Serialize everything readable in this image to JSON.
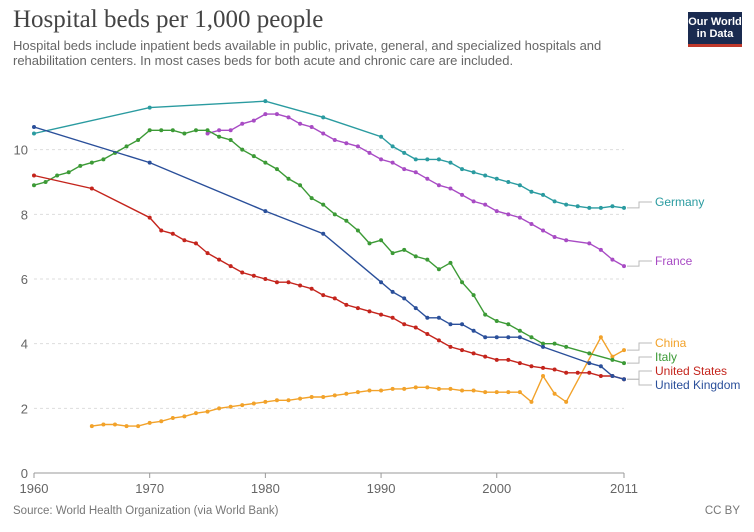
{
  "header": {
    "title": "Hospital beds per 1,000 people",
    "subtitle": "Hospital beds include inpatient beds available in public, private, general, and specialized hospitals and rehabilitation centers. In most cases beds for both acute and chronic care are included.",
    "logo_line1": "Our World",
    "logo_line2": "in Data"
  },
  "footer": {
    "source": "Source: World Health Organization (via World Bank)",
    "license": "CC BY"
  },
  "chart_data": {
    "type": "line",
    "title": "Hospital beds per 1,000 people",
    "xlabel": "",
    "ylabel": "",
    "xlim": [
      1960,
      2011
    ],
    "ylim": [
      0,
      12
    ],
    "x_ticks": [
      1960,
      1970,
      1980,
      1990,
      2000,
      2011
    ],
    "y_ticks": [
      0,
      2,
      4,
      6,
      8,
      10
    ],
    "grid": "horizontal dashed",
    "legend": "inline labels at right",
    "series": [
      {
        "name": "Germany",
        "color": "#2a9ba0",
        "points": [
          [
            1960,
            10.5
          ],
          [
            1970,
            11.3
          ],
          [
            1980,
            11.5
          ],
          [
            1985,
            11.0
          ],
          [
            1990,
            10.4
          ],
          [
            1991,
            10.1
          ],
          [
            1992,
            9.9
          ],
          [
            1993,
            9.7
          ],
          [
            1994,
            9.7
          ],
          [
            1995,
            9.7
          ],
          [
            1996,
            9.6
          ],
          [
            1997,
            9.4
          ],
          [
            1998,
            9.3
          ],
          [
            1999,
            9.2
          ],
          [
            2000,
            9.1
          ],
          [
            2001,
            9.0
          ],
          [
            2002,
            8.9
          ],
          [
            2003,
            8.7
          ],
          [
            2004,
            8.6
          ],
          [
            2005,
            8.4
          ],
          [
            2006,
            8.3
          ],
          [
            2007,
            8.25
          ],
          [
            2008,
            8.2
          ],
          [
            2009,
            8.2
          ],
          [
            2010,
            8.25
          ],
          [
            2011,
            8.2
          ]
        ]
      },
      {
        "name": "France",
        "color": "#a84bc4",
        "points": [
          [
            1975,
            10.5
          ],
          [
            1976,
            10.6
          ],
          [
            1977,
            10.6
          ],
          [
            1978,
            10.8
          ],
          [
            1979,
            10.9
          ],
          [
            1980,
            11.1
          ],
          [
            1981,
            11.1
          ],
          [
            1982,
            11.0
          ],
          [
            1983,
            10.8
          ],
          [
            1984,
            10.7
          ],
          [
            1985,
            10.5
          ],
          [
            1986,
            10.3
          ],
          [
            1987,
            10.2
          ],
          [
            1988,
            10.1
          ],
          [
            1989,
            9.9
          ],
          [
            1990,
            9.7
          ],
          [
            1991,
            9.6
          ],
          [
            1992,
            9.4
          ],
          [
            1993,
            9.3
          ],
          [
            1994,
            9.1
          ],
          [
            1995,
            8.9
          ],
          [
            1996,
            8.8
          ],
          [
            1997,
            8.6
          ],
          [
            1998,
            8.4
          ],
          [
            1999,
            8.3
          ],
          [
            2000,
            8.1
          ],
          [
            2001,
            8.0
          ],
          [
            2002,
            7.9
          ],
          [
            2003,
            7.7
          ],
          [
            2004,
            7.5
          ],
          [
            2005,
            7.3
          ],
          [
            2006,
            7.2
          ],
          [
            2008,
            7.1
          ],
          [
            2009,
            6.9
          ],
          [
            2010,
            6.6
          ],
          [
            2011,
            6.4
          ]
        ]
      },
      {
        "name": "China",
        "color": "#f2a22a",
        "points": [
          [
            1965,
            1.45
          ],
          [
            1966,
            1.5
          ],
          [
            1967,
            1.5
          ],
          [
            1968,
            1.45
          ],
          [
            1969,
            1.45
          ],
          [
            1970,
            1.55
          ],
          [
            1971,
            1.6
          ],
          [
            1972,
            1.7
          ],
          [
            1973,
            1.75
          ],
          [
            1974,
            1.85
          ],
          [
            1975,
            1.9
          ],
          [
            1976,
            2.0
          ],
          [
            1977,
            2.05
          ],
          [
            1978,
            2.1
          ],
          [
            1979,
            2.15
          ],
          [
            1980,
            2.2
          ],
          [
            1981,
            2.25
          ],
          [
            1982,
            2.25
          ],
          [
            1983,
            2.3
          ],
          [
            1984,
            2.35
          ],
          [
            1985,
            2.35
          ],
          [
            1986,
            2.4
          ],
          [
            1987,
            2.45
          ],
          [
            1988,
            2.5
          ],
          [
            1989,
            2.55
          ],
          [
            1990,
            2.55
          ],
          [
            1991,
            2.6
          ],
          [
            1992,
            2.6
          ],
          [
            1993,
            2.65
          ],
          [
            1994,
            2.65
          ],
          [
            1995,
            2.6
          ],
          [
            1996,
            2.6
          ],
          [
            1997,
            2.55
          ],
          [
            1998,
            2.55
          ],
          [
            1999,
            2.5
          ],
          [
            2000,
            2.5
          ],
          [
            2001,
            2.5
          ],
          [
            2002,
            2.5
          ],
          [
            2003,
            2.2
          ],
          [
            2004,
            3.0
          ],
          [
            2005,
            2.45
          ],
          [
            2006,
            2.2
          ],
          [
            2009,
            4.2
          ],
          [
            2010,
            3.6
          ],
          [
            2011,
            3.8
          ]
        ]
      },
      {
        "name": "Italy",
        "color": "#3c9a36",
        "points": [
          [
            1960,
            8.9
          ],
          [
            1961,
            9.0
          ],
          [
            1962,
            9.2
          ],
          [
            1963,
            9.3
          ],
          [
            1964,
            9.5
          ],
          [
            1965,
            9.6
          ],
          [
            1966,
            9.7
          ],
          [
            1967,
            9.9
          ],
          [
            1968,
            10.1
          ],
          [
            1969,
            10.3
          ],
          [
            1970,
            10.6
          ],
          [
            1971,
            10.6
          ],
          [
            1972,
            10.6
          ],
          [
            1973,
            10.5
          ],
          [
            1974,
            10.6
          ],
          [
            1975,
            10.6
          ],
          [
            1976,
            10.4
          ],
          [
            1977,
            10.3
          ],
          [
            1978,
            10.0
          ],
          [
            1979,
            9.8
          ],
          [
            1980,
            9.6
          ],
          [
            1981,
            9.4
          ],
          [
            1982,
            9.1
          ],
          [
            1983,
            8.9
          ],
          [
            1984,
            8.5
          ],
          [
            1985,
            8.3
          ],
          [
            1986,
            8.0
          ],
          [
            1987,
            7.8
          ],
          [
            1988,
            7.5
          ],
          [
            1989,
            7.1
          ],
          [
            1990,
            7.2
          ],
          [
            1991,
            6.8
          ],
          [
            1992,
            6.9
          ],
          [
            1993,
            6.7
          ],
          [
            1994,
            6.6
          ],
          [
            1995,
            6.3
          ],
          [
            1996,
            6.5
          ],
          [
            1997,
            5.9
          ],
          [
            1998,
            5.5
          ],
          [
            1999,
            4.9
          ],
          [
            2000,
            4.7
          ],
          [
            2001,
            4.6
          ],
          [
            2002,
            4.4
          ],
          [
            2003,
            4.2
          ],
          [
            2004,
            4.0
          ],
          [
            2005,
            4.0
          ],
          [
            2006,
            3.9
          ],
          [
            2008,
            3.7
          ],
          [
            2010,
            3.5
          ],
          [
            2011,
            3.4
          ]
        ]
      },
      {
        "name": "United States",
        "color": "#c4241c",
        "points": [
          [
            1960,
            9.2
          ],
          [
            1965,
            8.8
          ],
          [
            1970,
            7.9
          ],
          [
            1971,
            7.5
          ],
          [
            1972,
            7.4
          ],
          [
            1973,
            7.2
          ],
          [
            1974,
            7.1
          ],
          [
            1975,
            6.8
          ],
          [
            1976,
            6.6
          ],
          [
            1977,
            6.4
          ],
          [
            1978,
            6.2
          ],
          [
            1979,
            6.1
          ],
          [
            1980,
            6.0
          ],
          [
            1981,
            5.9
          ],
          [
            1982,
            5.9
          ],
          [
            1983,
            5.8
          ],
          [
            1984,
            5.7
          ],
          [
            1985,
            5.5
          ],
          [
            1986,
            5.4
          ],
          [
            1987,
            5.2
          ],
          [
            1988,
            5.1
          ],
          [
            1989,
            5.0
          ],
          [
            1990,
            4.9
          ],
          [
            1991,
            4.8
          ],
          [
            1992,
            4.6
          ],
          [
            1993,
            4.5
          ],
          [
            1994,
            4.3
          ],
          [
            1995,
            4.1
          ],
          [
            1996,
            3.9
          ],
          [
            1997,
            3.8
          ],
          [
            1998,
            3.7
          ],
          [
            1999,
            3.6
          ],
          [
            2000,
            3.5
          ],
          [
            2001,
            3.5
          ],
          [
            2002,
            3.4
          ],
          [
            2003,
            3.3
          ],
          [
            2004,
            3.25
          ],
          [
            2005,
            3.2
          ],
          [
            2006,
            3.1
          ],
          [
            2007,
            3.1
          ],
          [
            2008,
            3.1
          ],
          [
            2009,
            3.0
          ],
          [
            2010,
            3.0
          ],
          [
            2011,
            2.9
          ]
        ]
      },
      {
        "name": "United Kingdom",
        "color": "#2a4f9a",
        "points": [
          [
            1960,
            10.7
          ],
          [
            1970,
            9.6
          ],
          [
            1980,
            8.1
          ],
          [
            1985,
            7.4
          ],
          [
            1990,
            5.9
          ],
          [
            1991,
            5.6
          ],
          [
            1992,
            5.4
          ],
          [
            1993,
            5.1
          ],
          [
            1994,
            4.8
          ],
          [
            1995,
            4.8
          ],
          [
            1996,
            4.6
          ],
          [
            1997,
            4.6
          ],
          [
            1998,
            4.4
          ],
          [
            1999,
            4.2
          ],
          [
            2000,
            4.2
          ],
          [
            2001,
            4.2
          ],
          [
            2002,
            4.2
          ],
          [
            2004,
            3.9
          ],
          [
            2008,
            3.4
          ],
          [
            2009,
            3.3
          ],
          [
            2010,
            3.0
          ],
          [
            2011,
            2.9
          ]
        ]
      }
    ]
  }
}
